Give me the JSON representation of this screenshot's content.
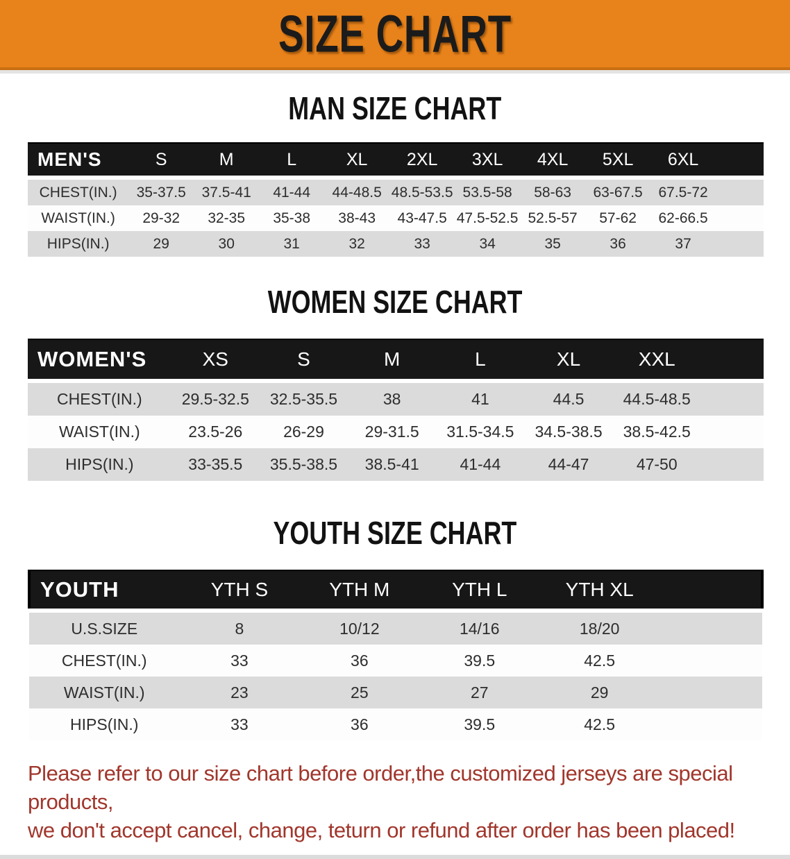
{
  "banner": {
    "title": "SIZE CHART"
  },
  "sections": [
    {
      "heading": "MAN SIZE CHART",
      "corner_label": "MEN'S",
      "columns": [
        "S",
        "M",
        "L",
        "XL",
        "2XL",
        "3XL",
        "4XL",
        "5XL",
        "6XL"
      ],
      "rows": [
        {
          "label": "CHEST(IN.)",
          "values": [
            "35-37.5",
            "37.5-41",
            "41-44",
            "44-48.5",
            "48.5-53.5",
            "53.5-58",
            "58-63",
            "63-67.5",
            "67.5-72"
          ]
        },
        {
          "label": "WAIST(IN.)",
          "values": [
            "29-32",
            "32-35",
            "35-38",
            "38-43",
            "43-47.5",
            "47.5-52.5",
            "52.5-57",
            "57-62",
            "62-66.5"
          ]
        },
        {
          "label": "HIPS(IN.)",
          "values": [
            "29",
            "30",
            "31",
            "32",
            "33",
            "34",
            "35",
            "36",
            "37"
          ]
        }
      ]
    },
    {
      "heading": "WOMEN SIZE CHART",
      "corner_label": "WOMEN'S",
      "columns": [
        "XS",
        "S",
        "M",
        "L",
        "XL",
        "XXL"
      ],
      "rows": [
        {
          "label": "CHEST(IN.)",
          "values": [
            "29.5-32.5",
            "32.5-35.5",
            "38",
            "41",
            "44.5",
            "44.5-48.5"
          ]
        },
        {
          "label": "WAIST(IN.)",
          "values": [
            "23.5-26",
            "26-29",
            "29-31.5",
            "31.5-34.5",
            "34.5-38.5",
            "38.5-42.5"
          ]
        },
        {
          "label": "HIPS(IN.)",
          "values": [
            "33-35.5",
            "35.5-38.5",
            "38.5-41",
            "41-44",
            "44-47",
            "47-50"
          ]
        }
      ]
    },
    {
      "heading": "YOUTH SIZE CHART",
      "corner_label": "YOUTH",
      "columns": [
        "YTH S",
        "YTH M",
        "YTH L",
        "YTH XL"
      ],
      "rows": [
        {
          "label": "U.S.SIZE",
          "values": [
            "8",
            "10/12",
            "14/16",
            "18/20"
          ]
        },
        {
          "label": "CHEST(IN.)",
          "values": [
            "33",
            "36",
            "39.5",
            "42.5"
          ]
        },
        {
          "label": "WAIST(IN.)",
          "values": [
            "23",
            "25",
            "27",
            "29"
          ]
        },
        {
          "label": "HIPS(IN.)",
          "values": [
            "33",
            "36",
            "39.5",
            "42.5"
          ]
        }
      ]
    }
  ],
  "footer": {
    "line1": "Please refer to our size chart before order,the customized jerseys are special products,",
    "line2": "we don't accept cancel, change, teturn or refund after order has been placed!"
  },
  "colors": {
    "banner_orange": "#e8821a",
    "banner_text": "#1b1b1b",
    "table_header_black": "#171717",
    "table_header_text": "#ffffff",
    "row_stripe_gray": "#dbdbdb",
    "row_plain_white": "#fdfdfd",
    "footer_red": "#a1362c"
  }
}
